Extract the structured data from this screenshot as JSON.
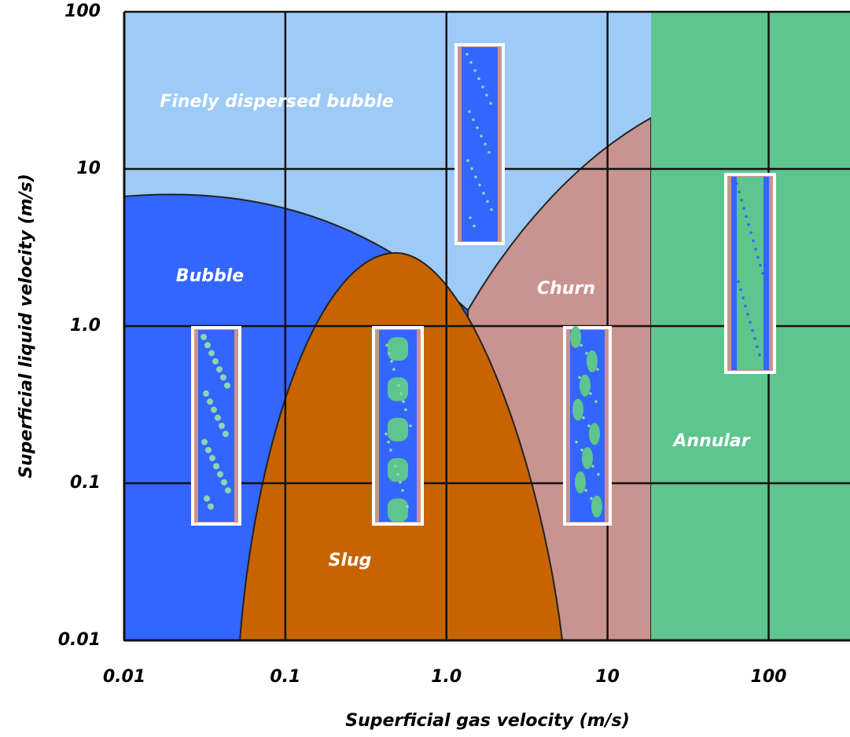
{
  "chart_data": {
    "type": "region-map",
    "x_label": "Superficial gas velocity (m/s)",
    "y_label": "Superficial liquid velocity (m/s)",
    "x_scale": "log",
    "y_scale": "log",
    "xlim": [
      0.01,
      320
    ],
    "ylim": [
      0.01,
      100
    ],
    "xticks": [
      0.01,
      0.1,
      {
        "value": 1,
        "label": "1.0"
      },
      10,
      100
    ],
    "yticks": [
      0.01,
      0.1,
      {
        "value": 1,
        "label": "1.0"
      },
      10,
      100
    ],
    "grid": true,
    "regions": [
      {
        "name": "Finely dispersed bubble",
        "color": "#9dcbf6"
      },
      {
        "name": "Bubble",
        "color": "#3366ff"
      },
      {
        "name": "Churn",
        "color": "#c9938f"
      },
      {
        "name": "Slug",
        "color": "#c86400"
      },
      {
        "name": "Annular",
        "color": "#5dc58d"
      }
    ]
  }
}
